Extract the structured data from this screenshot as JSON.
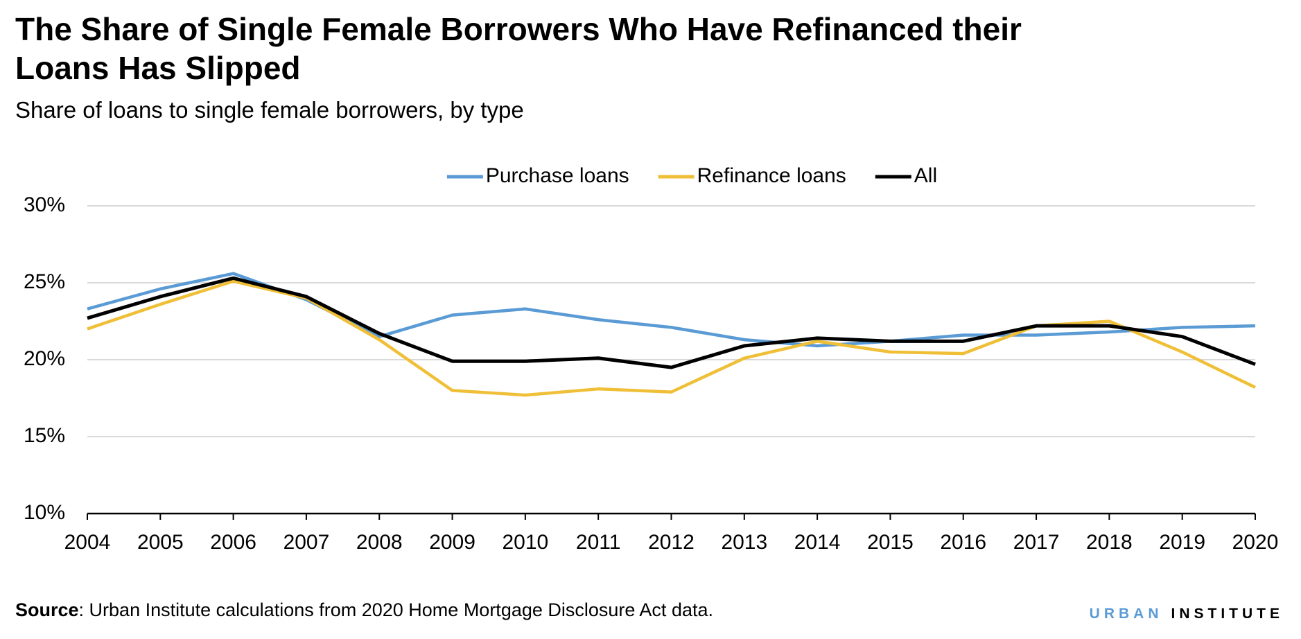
{
  "chart_data": {
    "type": "line",
    "title": "The Share of Single Female Borrowers Who Have Refinanced their Loans Has Slipped",
    "subtitle": "Share of loans to single female borrowers, by type",
    "categories": [
      "2004",
      "2005",
      "2006",
      "2007",
      "2008",
      "2009",
      "2010",
      "2011",
      "2012",
      "2013",
      "2014",
      "2015",
      "2016",
      "2017",
      "2018",
      "2019",
      "2020"
    ],
    "series": [
      {
        "name": "Purchase loans",
        "color": "#5b9bd5",
        "values": [
          23.3,
          24.6,
          25.6,
          23.9,
          21.5,
          22.9,
          23.3,
          22.6,
          22.1,
          21.3,
          20.9,
          21.2,
          21.6,
          21.6,
          21.8,
          22.1,
          22.2
        ]
      },
      {
        "name": "Refinance loans",
        "color": "#f0bf38",
        "values": [
          22.0,
          23.6,
          25.1,
          24.0,
          21.3,
          18.0,
          17.7,
          18.1,
          17.9,
          20.1,
          21.2,
          20.5,
          20.4,
          22.2,
          22.5,
          20.5,
          18.2
        ]
      },
      {
        "name": "All",
        "color": "#000000",
        "values": [
          22.7,
          24.1,
          25.3,
          24.1,
          21.7,
          19.9,
          19.9,
          20.1,
          19.5,
          20.9,
          21.4,
          21.2,
          21.2,
          22.2,
          22.2,
          21.5,
          19.7
        ]
      }
    ],
    "ylim": [
      10,
      30
    ],
    "yticks": [
      {
        "value": 10,
        "label": "10%"
      },
      {
        "value": 15,
        "label": "15%"
      },
      {
        "value": 20,
        "label": "20%"
      },
      {
        "value": 25,
        "label": "25%"
      },
      {
        "value": 30,
        "label": "30%"
      }
    ],
    "grid": true,
    "legend": "top",
    "source": {
      "label": "Source",
      "text": ": Urban Institute calculations from 2020 Home Mortgage Disclosure Act data."
    }
  },
  "branding": [
    "URBAN",
    "INSTITUTE"
  ]
}
